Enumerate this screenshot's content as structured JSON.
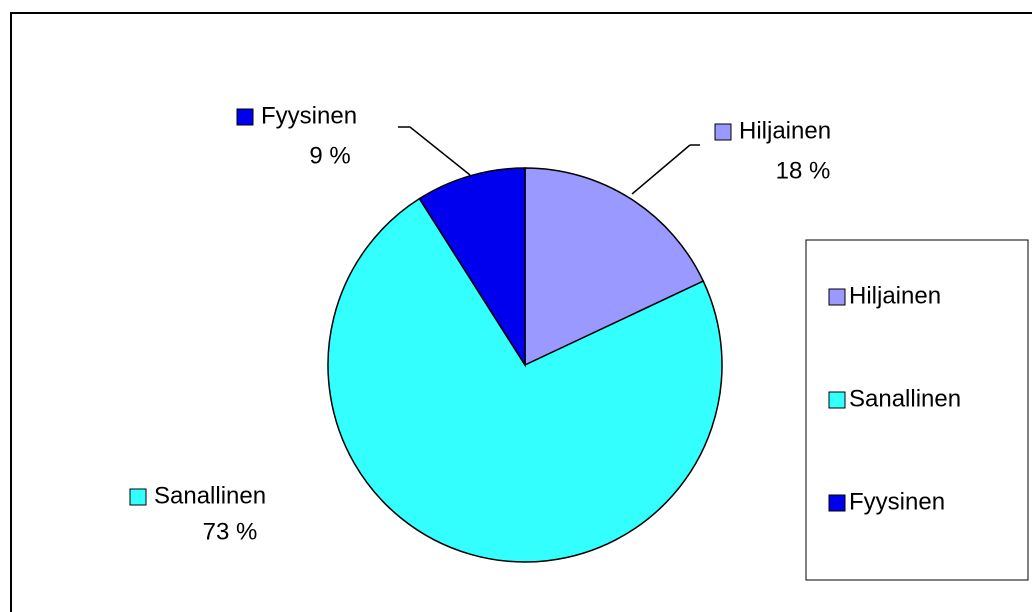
{
  "chart_data": {
    "type": "pie",
    "categories": [
      "Hiljainen",
      "Sanallinen",
      "Fyysinen"
    ],
    "values": [
      18,
      73,
      9
    ],
    "value_labels": [
      "18 %",
      "73 %",
      "9 %"
    ],
    "colors": [
      "#9999ff",
      "#33ffff",
      "#0000ee"
    ],
    "legend": "right"
  }
}
